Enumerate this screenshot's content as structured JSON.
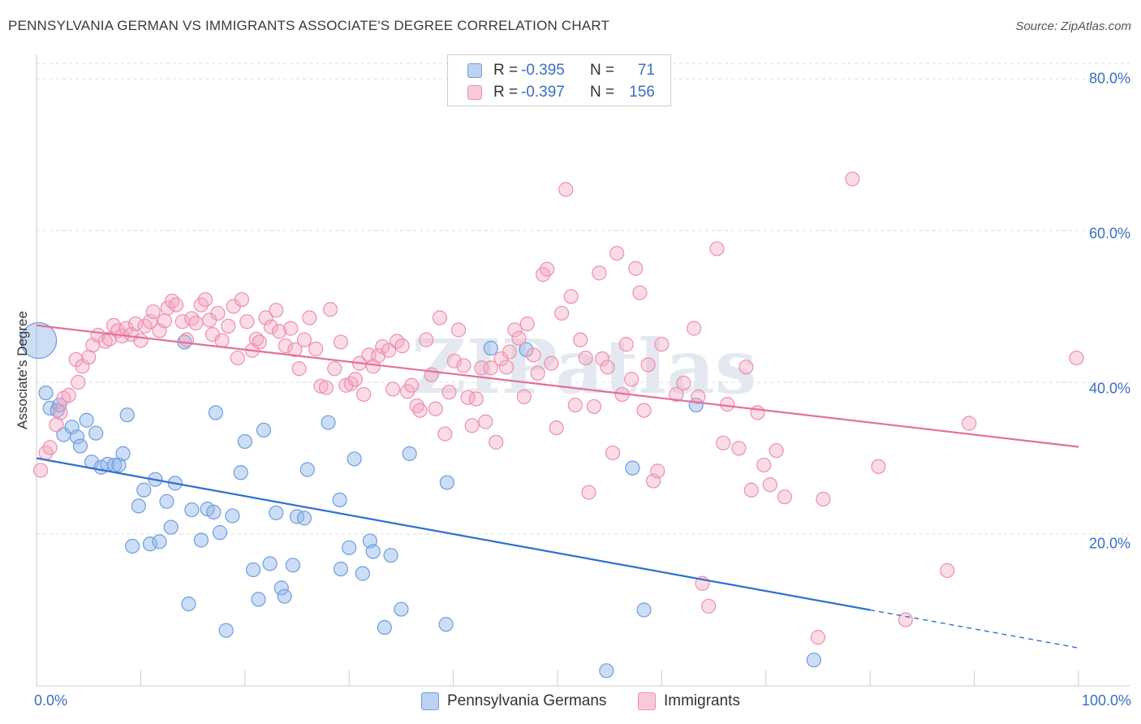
{
  "header": {
    "title": "PENNSYLVANIA GERMAN VS IMMIGRANTS ASSOCIATE'S DEGREE CORRELATION CHART",
    "source": "Source: ZipAtlas.com"
  },
  "watermark": "ZIPatlas",
  "legend": {
    "items": [
      {
        "r_label": "R =",
        "r_value": "-0.395",
        "n_label": "N =",
        "n_value": "71",
        "color": "#8fb4ea"
      },
      {
        "r_label": "R =",
        "r_value": "-0.397",
        "n_label": "N =",
        "n_value": "156",
        "color": "#f4a6bf"
      }
    ]
  },
  "chart_data": {
    "type": "scatter",
    "title": "PENNSYLVANIA GERMAN VS IMMIGRANTS ASSOCIATE'S DEGREE CORRELATION CHART",
    "xlabel": "",
    "ylabel": "Associate's Degree",
    "xlim": [
      0,
      100
    ],
    "ylim": [
      0,
      85
    ],
    "x_tick_labels": [
      "0.0%",
      "100.0%"
    ],
    "y_ticks": [
      20,
      40,
      60,
      80
    ],
    "y_tick_labels": [
      "20.0%",
      "40.0%",
      "60.0%",
      "80.0%"
    ],
    "grid": true,
    "legend_position": "top-center",
    "series": [
      {
        "name": "Pennsylvania Germans",
        "color": "#8fb4ea",
        "line_color": "#2f6fd1",
        "trend": {
          "x0": 0,
          "y0": 30,
          "x1": 80,
          "y1": 10,
          "dashed_to_x": 100,
          "dashed_to_y": 5
        },
        "points": [
          [
            0.2,
            45.5
          ],
          [
            0.9,
            38.6
          ],
          [
            1.3,
            36.6
          ],
          [
            2.0,
            36.3
          ],
          [
            2.2,
            37.0
          ],
          [
            2.6,
            33.1
          ],
          [
            3.4,
            34.1
          ],
          [
            3.9,
            32.8
          ],
          [
            4.2,
            31.6
          ],
          [
            4.8,
            35.0
          ],
          [
            5.3,
            29.5
          ],
          [
            5.7,
            33.3
          ],
          [
            6.2,
            28.8
          ],
          [
            6.8,
            29.2
          ],
          [
            7.5,
            29.1
          ],
          [
            7.9,
            29.1
          ],
          [
            8.3,
            30.6
          ],
          [
            8.7,
            35.7
          ],
          [
            9.2,
            18.4
          ],
          [
            9.8,
            23.7
          ],
          [
            10.3,
            25.8
          ],
          [
            10.9,
            18.7
          ],
          [
            11.4,
            27.2
          ],
          [
            11.8,
            19.0
          ],
          [
            12.5,
            24.3
          ],
          [
            12.9,
            20.9
          ],
          [
            13.3,
            26.7
          ],
          [
            14.2,
            45.3
          ],
          [
            14.6,
            10.8
          ],
          [
            14.9,
            23.2
          ],
          [
            15.8,
            19.2
          ],
          [
            16.4,
            23.3
          ],
          [
            17.0,
            22.9
          ],
          [
            17.2,
            36.0
          ],
          [
            17.6,
            20.2
          ],
          [
            18.2,
            7.3
          ],
          [
            18.8,
            22.4
          ],
          [
            19.6,
            28.1
          ],
          [
            20.0,
            32.2
          ],
          [
            20.8,
            15.3
          ],
          [
            21.3,
            11.4
          ],
          [
            21.8,
            33.7
          ],
          [
            22.4,
            16.1
          ],
          [
            23.0,
            22.8
          ],
          [
            23.5,
            12.9
          ],
          [
            23.8,
            11.8
          ],
          [
            24.6,
            15.9
          ],
          [
            25.0,
            22.3
          ],
          [
            25.7,
            22.1
          ],
          [
            26.0,
            28.5
          ],
          [
            28.0,
            34.7
          ],
          [
            29.1,
            24.5
          ],
          [
            29.2,
            15.4
          ],
          [
            30.0,
            18.2
          ],
          [
            30.5,
            29.9
          ],
          [
            31.3,
            14.8
          ],
          [
            32.0,
            19.1
          ],
          [
            32.3,
            17.7
          ],
          [
            33.4,
            7.7
          ],
          [
            34.0,
            17.2
          ],
          [
            35.0,
            10.1
          ],
          [
            35.8,
            30.6
          ],
          [
            39.3,
            8.1
          ],
          [
            39.4,
            26.8
          ],
          [
            43.6,
            44.5
          ],
          [
            47.0,
            44.3
          ],
          [
            54.7,
            2.0
          ],
          [
            57.2,
            28.7
          ],
          [
            58.3,
            10.0
          ],
          [
            63.3,
            37.0
          ],
          [
            74.6,
            3.4
          ]
        ]
      },
      {
        "name": "Immigrants",
        "color": "#f4a6bf",
        "line_color": "#e46f9a",
        "trend": {
          "x0": 0,
          "y0": 47.5,
          "x1": 100,
          "y1": 31.5
        },
        "points": [
          [
            0.4,
            28.4
          ],
          [
            0.9,
            30.7
          ],
          [
            1.3,
            31.4
          ],
          [
            1.9,
            34.4
          ],
          [
            2.3,
            36.0
          ],
          [
            2.6,
            37.9
          ],
          [
            3.1,
            38.3
          ],
          [
            3.8,
            43.0
          ],
          [
            4.0,
            40.0
          ],
          [
            4.4,
            42.1
          ],
          [
            5.0,
            43.3
          ],
          [
            5.4,
            44.9
          ],
          [
            5.9,
            46.2
          ],
          [
            6.6,
            45.4
          ],
          [
            7.0,
            45.7
          ],
          [
            7.4,
            47.5
          ],
          [
            7.8,
            46.8
          ],
          [
            8.2,
            46.1
          ],
          [
            8.6,
            47.1
          ],
          [
            9.1,
            46.3
          ],
          [
            9.5,
            47.7
          ],
          [
            10.0,
            45.5
          ],
          [
            10.4,
            47.4
          ],
          [
            10.9,
            48.0
          ],
          [
            11.2,
            49.3
          ],
          [
            11.8,
            46.8
          ],
          [
            12.3,
            48.1
          ],
          [
            12.6,
            49.8
          ],
          [
            13.0,
            50.7
          ],
          [
            13.4,
            50.2
          ],
          [
            14.0,
            48.0
          ],
          [
            14.4,
            45.6
          ],
          [
            14.9,
            48.4
          ],
          [
            15.3,
            47.8
          ],
          [
            15.8,
            50.2
          ],
          [
            16.2,
            50.9
          ],
          [
            16.6,
            48.2
          ],
          [
            16.9,
            46.3
          ],
          [
            17.4,
            49.1
          ],
          [
            17.8,
            45.5
          ],
          [
            18.4,
            47.4
          ],
          [
            18.9,
            50.0
          ],
          [
            19.3,
            43.2
          ],
          [
            19.7,
            50.9
          ],
          [
            20.2,
            48.0
          ],
          [
            20.7,
            44.2
          ],
          [
            21.1,
            45.7
          ],
          [
            21.4,
            45.3
          ],
          [
            22.0,
            48.5
          ],
          [
            22.5,
            47.3
          ],
          [
            23.0,
            49.5
          ],
          [
            23.3,
            46.7
          ],
          [
            23.9,
            44.8
          ],
          [
            24.4,
            47.1
          ],
          [
            24.8,
            44.3
          ],
          [
            25.2,
            41.8
          ],
          [
            25.7,
            45.6
          ],
          [
            26.2,
            48.5
          ],
          [
            26.8,
            44.4
          ],
          [
            27.3,
            39.5
          ],
          [
            27.8,
            39.3
          ],
          [
            28.2,
            49.6
          ],
          [
            28.6,
            41.8
          ],
          [
            29.2,
            45.3
          ],
          [
            29.7,
            39.6
          ],
          [
            30.2,
            39.8
          ],
          [
            30.6,
            40.4
          ],
          [
            31.0,
            42.5
          ],
          [
            31.4,
            38.4
          ],
          [
            31.9,
            43.6
          ],
          [
            32.3,
            42.1
          ],
          [
            32.8,
            43.5
          ],
          [
            33.2,
            44.7
          ],
          [
            33.8,
            44.2
          ],
          [
            34.2,
            39.1
          ],
          [
            34.6,
            45.4
          ],
          [
            35.1,
            44.8
          ],
          [
            35.6,
            38.8
          ],
          [
            36.0,
            39.6
          ],
          [
            36.5,
            36.9
          ],
          [
            36.8,
            36.3
          ],
          [
            37.4,
            45.6
          ],
          [
            37.9,
            41.0
          ],
          [
            38.3,
            36.5
          ],
          [
            38.7,
            48.5
          ],
          [
            39.2,
            33.2
          ],
          [
            39.6,
            38.7
          ],
          [
            40.1,
            42.8
          ],
          [
            40.5,
            46.9
          ],
          [
            41.0,
            42.2
          ],
          [
            41.4,
            38.0
          ],
          [
            41.8,
            34.3
          ],
          [
            42.2,
            37.8
          ],
          [
            42.7,
            41.9
          ],
          [
            43.1,
            34.8
          ],
          [
            43.6,
            41.9
          ],
          [
            44.1,
            32.1
          ],
          [
            44.6,
            43.1
          ],
          [
            45.1,
            42.0
          ],
          [
            45.4,
            44.0
          ],
          [
            45.9,
            46.9
          ],
          [
            46.3,
            45.8
          ],
          [
            46.8,
            38.1
          ],
          [
            47.1,
            47.7
          ],
          [
            47.7,
            43.6
          ],
          [
            48.1,
            41.2
          ],
          [
            48.6,
            54.2
          ],
          [
            49.0,
            54.9
          ],
          [
            49.4,
            42.5
          ],
          [
            49.9,
            34.0
          ],
          [
            50.4,
            49.1
          ],
          [
            50.8,
            65.4
          ],
          [
            51.3,
            51.3
          ],
          [
            51.7,
            37.0
          ],
          [
            52.2,
            45.6
          ],
          [
            52.7,
            43.2
          ],
          [
            53.0,
            25.5
          ],
          [
            53.5,
            36.8
          ],
          [
            54.0,
            54.4
          ],
          [
            54.3,
            43.1
          ],
          [
            54.8,
            42.0
          ],
          [
            55.3,
            30.7
          ],
          [
            55.7,
            57.0
          ],
          [
            56.2,
            38.4
          ],
          [
            56.6,
            45.0
          ],
          [
            57.1,
            40.4
          ],
          [
            57.5,
            55.0
          ],
          [
            57.9,
            51.8
          ],
          [
            58.3,
            36.3
          ],
          [
            58.7,
            42.3
          ],
          [
            59.2,
            27.0
          ],
          [
            59.6,
            28.3
          ],
          [
            60.0,
            45.0
          ],
          [
            61.4,
            38.4
          ],
          [
            62.1,
            39.9
          ],
          [
            63.1,
            47.1
          ],
          [
            63.5,
            38.1
          ],
          [
            63.9,
            13.5
          ],
          [
            64.5,
            10.5
          ],
          [
            65.3,
            57.6
          ],
          [
            65.9,
            32.0
          ],
          [
            66.3,
            37.1
          ],
          [
            67.4,
            31.3
          ],
          [
            68.1,
            42.0
          ],
          [
            68.6,
            25.8
          ],
          [
            69.2,
            36.0
          ],
          [
            69.8,
            29.1
          ],
          [
            70.4,
            26.5
          ],
          [
            71.0,
            31.0
          ],
          [
            71.8,
            24.9
          ],
          [
            75.0,
            6.4
          ],
          [
            75.5,
            24.6
          ],
          [
            78.3,
            66.8
          ],
          [
            80.8,
            28.9
          ],
          [
            83.4,
            8.7
          ],
          [
            87.4,
            15.2
          ],
          [
            89.5,
            34.6
          ],
          [
            99.8,
            43.2
          ]
        ]
      }
    ]
  },
  "bottom_legend": {
    "items": [
      {
        "label": "Pennsylvania Germans",
        "color": "#8fb4ea"
      },
      {
        "label": "Immigrants",
        "color": "#f4a6bf"
      }
    ]
  }
}
